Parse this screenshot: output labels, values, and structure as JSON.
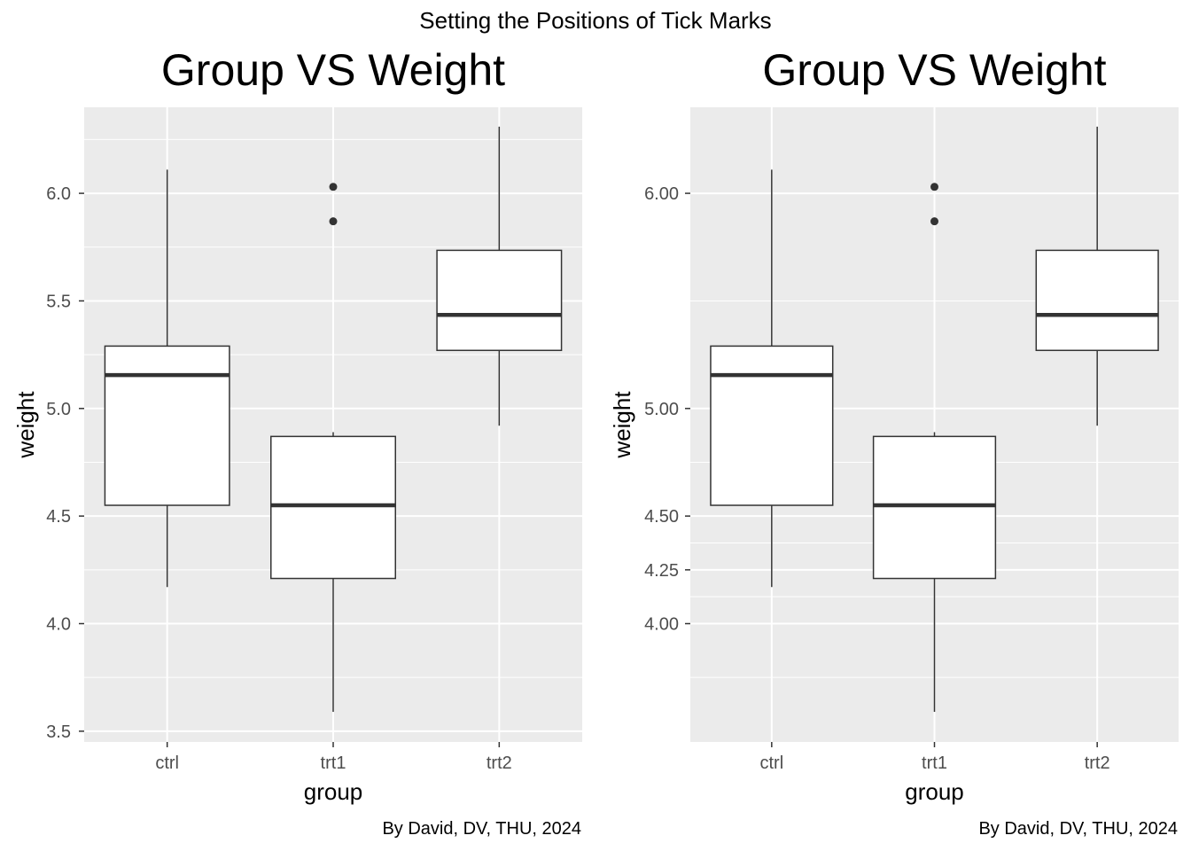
{
  "suptitle": "Setting the Positions of Tick Marks",
  "chart_data": [
    {
      "type": "boxplot",
      "title": "Group VS Weight",
      "xlabel": "group",
      "ylabel": "weight",
      "caption": "By David, DV, THU, 2024",
      "categories": [
        "ctrl",
        "trt1",
        "trt2"
      ],
      "ylim": [
        3.45,
        6.4
      ],
      "yticks": [
        3.5,
        4.0,
        4.5,
        5.0,
        5.5,
        6.0
      ],
      "ytick_labels": [
        "3.5",
        "4.0",
        "4.5",
        "5.0",
        "5.5",
        "6.0"
      ],
      "minor_breaks": [
        3.75,
        4.25,
        4.75,
        5.25,
        5.75,
        6.25
      ],
      "grid": true,
      "boxes": [
        {
          "category": "ctrl",
          "whisker_low": 4.17,
          "q1": 4.55,
          "median": 5.155,
          "q3": 5.29,
          "whisker_high": 6.11,
          "outliers": []
        },
        {
          "category": "trt1",
          "whisker_low": 3.59,
          "q1": 4.21,
          "median": 4.55,
          "q3": 4.87,
          "whisker_high": 4.89,
          "outliers": [
            5.87,
            6.03
          ]
        },
        {
          "category": "trt2",
          "whisker_low": 4.92,
          "q1": 5.27,
          "median": 5.435,
          "q3": 5.735,
          "whisker_high": 6.31,
          "outliers": []
        }
      ]
    },
    {
      "type": "boxplot",
      "title": "Group VS Weight",
      "xlabel": "group",
      "ylabel": "weight",
      "caption": "By David, DV, THU, 2024",
      "categories": [
        "ctrl",
        "trt1",
        "trt2"
      ],
      "ylim": [
        3.45,
        6.4
      ],
      "yticks": [
        4.0,
        4.25,
        4.5,
        5.0,
        6.0
      ],
      "ytick_labels": [
        "4.00",
        "4.25",
        "4.50",
        "5.00",
        "6.00"
      ],
      "minor_breaks": [
        3.75,
        4.125,
        4.375,
        4.75,
        5.5
      ],
      "grid": true,
      "boxes": [
        {
          "category": "ctrl",
          "whisker_low": 4.17,
          "q1": 4.55,
          "median": 5.155,
          "q3": 5.29,
          "whisker_high": 6.11,
          "outliers": []
        },
        {
          "category": "trt1",
          "whisker_low": 3.59,
          "q1": 4.21,
          "median": 4.55,
          "q3": 4.87,
          "whisker_high": 4.89,
          "outliers": [
            5.87,
            6.03
          ]
        },
        {
          "category": "trt2",
          "whisker_low": 4.92,
          "q1": 5.27,
          "median": 5.435,
          "q3": 5.735,
          "whisker_high": 6.31,
          "outliers": []
        }
      ]
    }
  ]
}
